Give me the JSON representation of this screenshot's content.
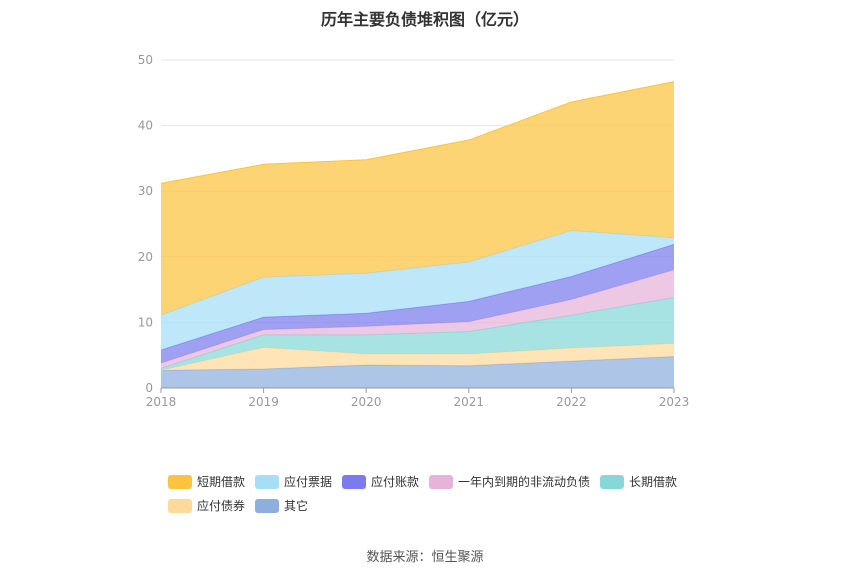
{
  "chart_title": "历年主要负债堆积图（亿元）",
  "source_text": "数据来源：恒生聚源",
  "chart_data": {
    "type": "area",
    "stacked": true,
    "title": "历年主要负债堆积图（亿元）",
    "xlabel": "",
    "ylabel": "",
    "categories": [
      "2018",
      "2019",
      "2020",
      "2021",
      "2022",
      "2023"
    ],
    "ylim": [
      0,
      50
    ],
    "yticks": [
      0,
      10,
      20,
      30,
      40,
      50
    ],
    "grid": true,
    "legend_position": "bottom",
    "series": [
      {
        "name": "其它",
        "color": "#8eaede",
        "values": [
          2.7,
          2.9,
          3.5,
          3.4,
          4.1,
          4.8
        ]
      },
      {
        "name": "应付债券",
        "color": "#fdd99a",
        "values": [
          0.0,
          3.3,
          1.7,
          1.8,
          2.0,
          2.0
        ]
      },
      {
        "name": "长期借款",
        "color": "#86d8d8",
        "values": [
          0.3,
          1.9,
          2.9,
          3.4,
          5.0,
          7.0
        ]
      },
      {
        "name": "一年内到期的非流动负债",
        "color": "#e6b3d9",
        "values": [
          0.8,
          0.8,
          1.3,
          1.5,
          2.4,
          4.2
        ]
      },
      {
        "name": "应付账款",
        "color": "#7b7bef",
        "values": [
          2.0,
          1.9,
          2.0,
          3.1,
          3.5,
          3.9
        ]
      },
      {
        "name": "应付票据",
        "color": "#a6def8",
        "values": [
          5.3,
          6.1,
          6.1,
          6.0,
          7.0,
          1.0
        ]
      },
      {
        "name": "短期借款",
        "color": "#fcc43e",
        "values": [
          20.1,
          17.2,
          17.3,
          18.6,
          19.6,
          23.8
        ]
      }
    ],
    "legend_order": [
      "短期借款",
      "应付票据",
      "应付账款",
      "一年内到期的非流动负债",
      "长期借款",
      "应付债券",
      "其它"
    ]
  }
}
